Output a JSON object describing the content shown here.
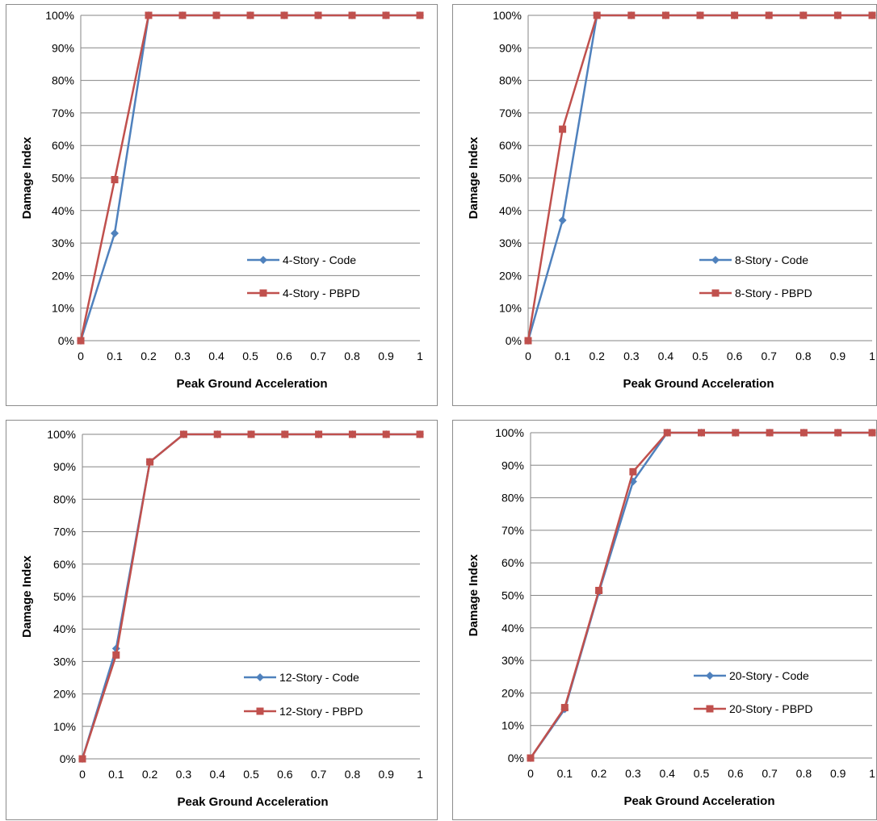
{
  "chart_data": [
    {
      "type": "line",
      "title": "",
      "xlabel": "Peak Ground Acceleration",
      "ylabel": "Damage Index",
      "x": [
        0,
        0.1,
        0.2,
        0.3,
        0.4,
        0.5,
        0.6,
        0.7,
        0.8,
        0.9,
        1
      ],
      "x_tick_labels": [
        "0",
        "0.1",
        "0.2",
        "0.3",
        "0.4",
        "0.5",
        "0.6",
        "0.7",
        "0.8",
        "0.9",
        "1"
      ],
      "y_tick_labels": [
        "0%",
        "10%",
        "20%",
        "30%",
        "40%",
        "50%",
        "60%",
        "70%",
        "80%",
        "90%",
        "100%"
      ],
      "xlim": [
        0,
        1
      ],
      "ylim": [
        0,
        100
      ],
      "grid": "horizontal",
      "legend_position": "lower-right",
      "series": [
        {
          "name": "4-Story - Code",
          "marker": "diamond",
          "color": "#4f81bd",
          "values": [
            0,
            33,
            100,
            100,
            100,
            100,
            100,
            100,
            100,
            100,
            100
          ]
        },
        {
          "name": "4-Story - PBPD",
          "marker": "square",
          "color": "#c0504d",
          "values": [
            0,
            49.5,
            100,
            100,
            100,
            100,
            100,
            100,
            100,
            100,
            100
          ]
        }
      ]
    },
    {
      "type": "line",
      "title": "",
      "xlabel": "Peak Ground Acceleration",
      "ylabel": "Damage Index",
      "x": [
        0,
        0.1,
        0.2,
        0.3,
        0.4,
        0.5,
        0.6,
        0.7,
        0.8,
        0.9,
        1
      ],
      "x_tick_labels": [
        "0",
        "0.1",
        "0.2",
        "0.3",
        "0.4",
        "0.5",
        "0.6",
        "0.7",
        "0.8",
        "0.9",
        "1"
      ],
      "y_tick_labels": [
        "0%",
        "10%",
        "20%",
        "30%",
        "40%",
        "50%",
        "60%",
        "70%",
        "80%",
        "90%",
        "100%"
      ],
      "xlim": [
        0,
        1
      ],
      "ylim": [
        0,
        100
      ],
      "grid": "horizontal",
      "legend_position": "lower-right",
      "series": [
        {
          "name": "8-Story - Code",
          "marker": "diamond",
          "color": "#4f81bd",
          "values": [
            0,
            37,
            100,
            100,
            100,
            100,
            100,
            100,
            100,
            100,
            100
          ]
        },
        {
          "name": "8-Story - PBPD",
          "marker": "square",
          "color": "#c0504d",
          "values": [
            0,
            65,
            100,
            100,
            100,
            100,
            100,
            100,
            100,
            100,
            100
          ]
        }
      ]
    },
    {
      "type": "line",
      "title": "",
      "xlabel": "Peak Ground Acceleration",
      "ylabel": "Damage Index",
      "x": [
        0,
        0.1,
        0.2,
        0.3,
        0.4,
        0.5,
        0.6,
        0.7,
        0.8,
        0.9,
        1
      ],
      "x_tick_labels": [
        "0",
        "0.1",
        "0.2",
        "0.3",
        "0.4",
        "0.5",
        "0.6",
        "0.7",
        "0.8",
        "0.9",
        "1"
      ],
      "y_tick_labels": [
        "0%",
        "10%",
        "20%",
        "30%",
        "40%",
        "50%",
        "60%",
        "70%",
        "80%",
        "90%",
        "100%"
      ],
      "xlim": [
        0,
        1
      ],
      "ylim": [
        0,
        100
      ],
      "grid": "horizontal",
      "legend_position": "lower-right",
      "series": [
        {
          "name": "12-Story - Code",
          "marker": "diamond",
          "color": "#4f81bd",
          "values": [
            0,
            34,
            91.5,
            100,
            100,
            100,
            100,
            100,
            100,
            100,
            100
          ]
        },
        {
          "name": "12-Story - PBPD",
          "marker": "square",
          "color": "#c0504d",
          "values": [
            0,
            32,
            91.5,
            100,
            100,
            100,
            100,
            100,
            100,
            100,
            100
          ]
        }
      ]
    },
    {
      "type": "line",
      "title": "",
      "xlabel": "Peak Ground Acceleration",
      "ylabel": "Damage Index",
      "x": [
        0,
        0.1,
        0.2,
        0.3,
        0.4,
        0.5,
        0.6,
        0.7,
        0.8,
        0.9,
        1
      ],
      "x_tick_labels": [
        "0",
        "0.1",
        "0.2",
        "0.3",
        "0.4",
        "0.5",
        "0.6",
        "0.7",
        "0.8",
        "0.9",
        "1"
      ],
      "y_tick_labels": [
        "0%",
        "10%",
        "20%",
        "30%",
        "40%",
        "50%",
        "60%",
        "70%",
        "80%",
        "90%",
        "100%"
      ],
      "xlim": [
        0,
        1
      ],
      "ylim": [
        0,
        100
      ],
      "grid": "horizontal",
      "legend_position": "lower-right",
      "series": [
        {
          "name": "20-Story - Code",
          "marker": "diamond",
          "color": "#4f81bd",
          "values": [
            0,
            15,
            51,
            85,
            100,
            100,
            100,
            100,
            100,
            100,
            100
          ]
        },
        {
          "name": "20-Story - PBPD",
          "marker": "square",
          "color": "#c0504d",
          "values": [
            0,
            15.5,
            51.5,
            88,
            100,
            100,
            100,
            100,
            100,
            100,
            100
          ]
        }
      ]
    }
  ]
}
